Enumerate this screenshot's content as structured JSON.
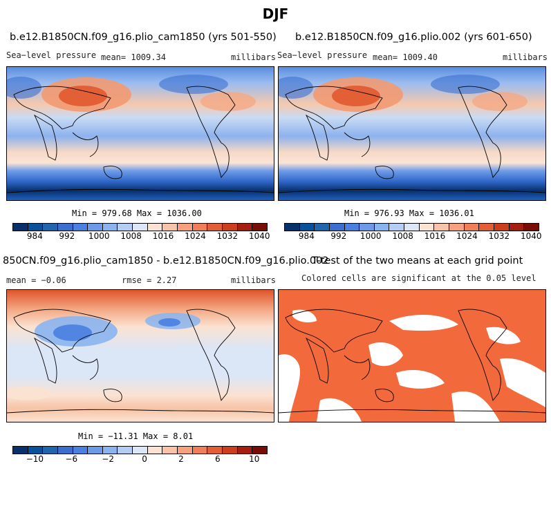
{
  "page_title": "DJF",
  "panels": {
    "p1": {
      "title": "b.e12.B1850CN.f09_g16.plio_cam1850 (yrs 501-550)",
      "left_label": "Sea−level pressure",
      "mean_label": "mean=  1009.34",
      "units": "millibars",
      "minmax": "Min = 979.68 Max = 1036.00"
    },
    "p2": {
      "title": "b.e12.B1850CN.f09_g16.plio.002 (yrs 601-650)",
      "left_label": "Sea−level pressure",
      "mean_label": "mean=  1009.40",
      "units": "millibars",
      "minmax": "Min = 976.93 Max = 1036.01"
    },
    "p3": {
      "title": "850CN.f09_g16.plio_cam1850 - b.e12.B1850CN.f09_g16.plio.002",
      "mean_label": "mean =   −0.06",
      "rmse_label": "rmse =    2.27",
      "units": "millibars",
      "minmax": "Min = −11.31 Max =   8.01"
    },
    "p4": {
      "title": "T-test of the two means at each grid point",
      "subtitle": "Colored cells are significant at the 0.05 level"
    }
  },
  "colorbars": {
    "abs": {
      "colors": [
        "#08306b",
        "#08519c",
        "#2166ac",
        "#3a6fd0",
        "#4a80e0",
        "#6a9ae8",
        "#8ab4f0",
        "#b4cdf5",
        "#dbe6f7",
        "#fbe2d2",
        "#f9c3a8",
        "#f6a07e",
        "#f07e58",
        "#e35e36",
        "#cc3e1d",
        "#a51e10",
        "#7a0c06"
      ],
      "ticks": [
        "984",
        "992",
        "1000",
        "1008",
        "1016",
        "1024",
        "1032",
        "1040"
      ]
    },
    "diff": {
      "colors": [
        "#08306b",
        "#08519c",
        "#2166ac",
        "#3a6fd0",
        "#4a80e0",
        "#6a9ae8",
        "#8ab4f0",
        "#b4cdf5",
        "#dbe6f7",
        "#fbe2d2",
        "#f9c3a8",
        "#f6a07e",
        "#f07e58",
        "#e35e36",
        "#cc3e1d",
        "#a51e10",
        "#7a0c06"
      ],
      "ticks": [
        "−10",
        "−6",
        "−2",
        "0",
        "2",
        "6",
        "10"
      ]
    }
  },
  "significance_color": "#f26a3c"
}
